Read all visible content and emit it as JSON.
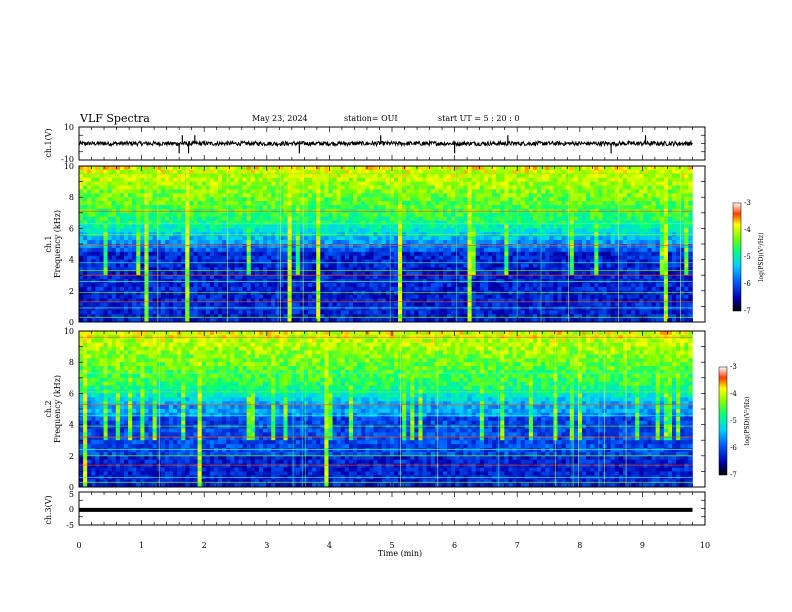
{
  "header": {
    "title": "VLF Spectra",
    "date": "May 23, 2024",
    "station": "station= OUI",
    "start": "start  UT =   5 : 20 : 0"
  },
  "chart_data": [
    {
      "type": "line",
      "name": "ch1_waveform",
      "ylabel": "ch.1(V)",
      "ylim": [
        -10,
        10
      ],
      "yticks": [
        "10",
        "-10"
      ],
      "xlim": [
        0,
        10
      ],
      "level": 0,
      "spike_times_min": [
        1.6,
        1.65,
        1.75,
        1.85,
        3.52,
        4.82,
        6.0,
        6.85,
        8.5,
        9.05
      ]
    },
    {
      "type": "heatmap",
      "name": "ch1_spectrogram",
      "ylabel_top": "ch.1",
      "ylabel": "Frequency (kHz)",
      "ylim": [
        0,
        10
      ],
      "yticks": [
        "0",
        "2",
        "4",
        "6",
        "8",
        "10"
      ],
      "xlim": [
        0,
        9.8
      ],
      "colorbar": {
        "label": "log(PSD)(V²/Hz)",
        "range": [
          -7,
          -3
        ],
        "ticks": [
          "-7",
          "-6",
          "-5",
          "-4",
          "-3"
        ]
      }
    },
    {
      "type": "heatmap",
      "name": "ch2_spectrogram",
      "ylabel_top": "ch.2",
      "ylabel": "Frequency (kHz)",
      "ylim": [
        0,
        10
      ],
      "yticks": [
        "0",
        "2",
        "4",
        "6",
        "8",
        "10"
      ],
      "xlim": [
        0,
        9.8
      ],
      "colorbar": {
        "label": "log(PSD)(V²/Hz)",
        "range": [
          -7,
          -3
        ],
        "ticks": [
          "-7",
          "-6",
          "-5",
          "-4",
          "-3"
        ]
      }
    },
    {
      "type": "line",
      "name": "ch3_waveform",
      "ylabel": "ch.3(V)",
      "ylim": [
        -5,
        5
      ],
      "yticks": [
        "5",
        "0",
        "-5"
      ],
      "xlim": [
        0,
        10
      ],
      "level": -0.4
    }
  ],
  "xaxis": {
    "label": "Time  (min)",
    "ticks": [
      "0",
      "1",
      "2",
      "3",
      "4",
      "5",
      "6",
      "7",
      "8",
      "9",
      "10"
    ]
  }
}
